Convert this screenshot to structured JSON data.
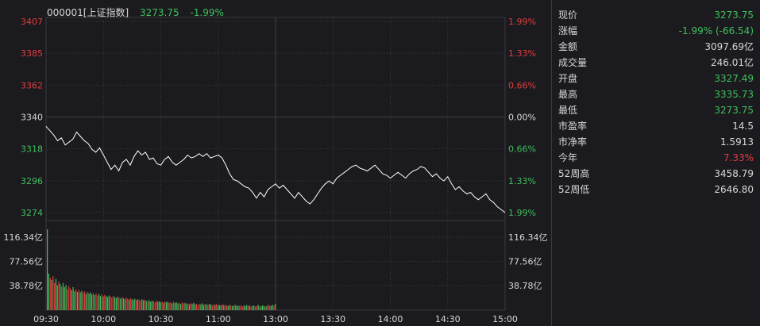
{
  "header": {
    "code": "000001[上证指数]",
    "price": "3273.75",
    "change": "-1.99%"
  },
  "colors": {
    "background": "#1b1b1f",
    "grid": "#3a3a3e",
    "up": "#e23b3b",
    "down": "#3fbf5b",
    "line": "#ffffff",
    "text": "#d7d7d7"
  },
  "chart_data": {
    "type": "line",
    "x_ticks": [
      "09:30",
      "10:00",
      "10:30",
      "11:00",
      "13:00",
      "13:30",
      "14:00",
      "14:30",
      "15:00"
    ],
    "price_axis": {
      "ticks": [
        "3407",
        "3385",
        "3362",
        "3340",
        "3318",
        "3296",
        "3274"
      ],
      "pct_ticks": [
        "1.99%",
        "1.33%",
        "0.66%",
        "0.00%",
        "0.66%",
        "1.33%",
        "1.99%"
      ],
      "ylim": [
        3274,
        3407
      ],
      "ref": 3340
    },
    "volume_axis": {
      "ticks": [
        "116.34亿",
        "77.56亿",
        "38.78亿"
      ],
      "unit": "亿",
      "ylim": [
        0,
        155.12
      ]
    },
    "price_series": [
      [
        0,
        3334
      ],
      [
        2,
        3331
      ],
      [
        4,
        3328
      ],
      [
        6,
        3324
      ],
      [
        8,
        3326
      ],
      [
        10,
        3321
      ],
      [
        12,
        3323
      ],
      [
        14,
        3325
      ],
      [
        16,
        3330
      ],
      [
        18,
        3327
      ],
      [
        20,
        3324
      ],
      [
        22,
        3322
      ],
      [
        24,
        3318
      ],
      [
        26,
        3316
      ],
      [
        28,
        3319
      ],
      [
        30,
        3314
      ],
      [
        32,
        3309
      ],
      [
        34,
        3304
      ],
      [
        36,
        3307
      ],
      [
        38,
        3303
      ],
      [
        40,
        3309
      ],
      [
        42,
        3311
      ],
      [
        44,
        3307
      ],
      [
        46,
        3313
      ],
      [
        48,
        3317
      ],
      [
        50,
        3314
      ],
      [
        52,
        3316
      ],
      [
        54,
        3311
      ],
      [
        56,
        3312
      ],
      [
        58,
        3308
      ],
      [
        60,
        3307
      ],
      [
        62,
        3311
      ],
      [
        64,
        3313
      ],
      [
        66,
        3309
      ],
      [
        68,
        3307
      ],
      [
        70,
        3309
      ],
      [
        72,
        3311
      ],
      [
        74,
        3314
      ],
      [
        76,
        3312
      ],
      [
        78,
        3313
      ],
      [
        80,
        3315
      ],
      [
        82,
        3313
      ],
      [
        84,
        3315
      ],
      [
        86,
        3312
      ],
      [
        88,
        3313
      ],
      [
        90,
        3314
      ],
      [
        92,
        3312
      ],
      [
        94,
        3307
      ],
      [
        96,
        3301
      ],
      [
        98,
        3297
      ],
      [
        100,
        3296
      ],
      [
        102,
        3294
      ],
      [
        104,
        3292
      ],
      [
        106,
        3291
      ],
      [
        108,
        3288
      ],
      [
        110,
        3284
      ],
      [
        112,
        3288
      ],
      [
        114,
        3285
      ],
      [
        116,
        3290
      ],
      [
        118,
        3292
      ],
      [
        120,
        3294
      ],
      [
        122,
        3291
      ],
      [
        124,
        3293
      ],
      [
        126,
        3290
      ],
      [
        128,
        3287
      ],
      [
        130,
        3284
      ],
      [
        132,
        3288
      ],
      [
        134,
        3285
      ],
      [
        136,
        3282
      ],
      [
        138,
        3280
      ],
      [
        140,
        3283
      ],
      [
        142,
        3287
      ],
      [
        144,
        3291
      ],
      [
        146,
        3294
      ],
      [
        148,
        3296
      ],
      [
        150,
        3294
      ],
      [
        152,
        3298
      ],
      [
        154,
        3300
      ],
      [
        156,
        3302
      ],
      [
        158,
        3304
      ],
      [
        160,
        3306
      ],
      [
        162,
        3307
      ],
      [
        164,
        3305
      ],
      [
        166,
        3304
      ],
      [
        168,
        3303
      ],
      [
        170,
        3305
      ],
      [
        172,
        3307
      ],
      [
        174,
        3304
      ],
      [
        176,
        3301
      ],
      [
        178,
        3300
      ],
      [
        180,
        3298
      ],
      [
        182,
        3300
      ],
      [
        184,
        3302
      ],
      [
        186,
        3300
      ],
      [
        188,
        3298
      ],
      [
        190,
        3301
      ],
      [
        192,
        3303
      ],
      [
        194,
        3304
      ],
      [
        196,
        3306
      ],
      [
        198,
        3305
      ],
      [
        200,
        3302
      ],
      [
        202,
        3299
      ],
      [
        204,
        3301
      ],
      [
        206,
        3298
      ],
      [
        208,
        3296
      ],
      [
        210,
        3299
      ],
      [
        212,
        3294
      ],
      [
        214,
        3290
      ],
      [
        216,
        3292
      ],
      [
        218,
        3289
      ],
      [
        220,
        3287
      ],
      [
        222,
        3288
      ],
      [
        224,
        3285
      ],
      [
        226,
        3283
      ],
      [
        228,
        3285
      ],
      [
        230,
        3287
      ],
      [
        232,
        3283
      ],
      [
        234,
        3281
      ],
      [
        236,
        3278
      ],
      [
        238,
        3276
      ],
      [
        240,
        3274
      ]
    ],
    "volume_series": [
      [
        0,
        155
      ],
      [
        1,
        70
      ],
      [
        2,
        62
      ],
      [
        3,
        58
      ],
      [
        4,
        65
      ],
      [
        5,
        52
      ],
      [
        6,
        60
      ],
      [
        7,
        48
      ],
      [
        8,
        55
      ],
      [
        9,
        50
      ],
      [
        10,
        45
      ],
      [
        11,
        52
      ],
      [
        12,
        44
      ],
      [
        13,
        48
      ],
      [
        14,
        40
      ],
      [
        15,
        46
      ],
      [
        16,
        42
      ],
      [
        17,
        38
      ],
      [
        18,
        44
      ],
      [
        19,
        36
      ],
      [
        20,
        40
      ],
      [
        21,
        35
      ],
      [
        22,
        39
      ],
      [
        23,
        34
      ],
      [
        24,
        37
      ],
      [
        25,
        33
      ],
      [
        26,
        36
      ],
      [
        27,
        31
      ],
      [
        28,
        35
      ],
      [
        29,
        32
      ],
      [
        30,
        34
      ],
      [
        31,
        30
      ],
      [
        32,
        33
      ],
      [
        33,
        29
      ],
      [
        34,
        32
      ],
      [
        35,
        28
      ],
      [
        36,
        31
      ],
      [
        37,
        27
      ],
      [
        38,
        30
      ],
      [
        39,
        26
      ],
      [
        40,
        29
      ],
      [
        41,
        27
      ],
      [
        42,
        25
      ],
      [
        43,
        28
      ],
      [
        44,
        26
      ],
      [
        45,
        24
      ],
      [
        46,
        27
      ],
      [
        47,
        25
      ],
      [
        48,
        23
      ],
      [
        49,
        26
      ],
      [
        50,
        24
      ],
      [
        51,
        22
      ],
      [
        52,
        25
      ],
      [
        53,
        23
      ],
      [
        54,
        21
      ],
      [
        55,
        24
      ],
      [
        56,
        22
      ],
      [
        57,
        20
      ],
      [
        58,
        23
      ],
      [
        59,
        21
      ],
      [
        60,
        20
      ],
      [
        61,
        22
      ],
      [
        62,
        19
      ],
      [
        63,
        21
      ],
      [
        64,
        20
      ],
      [
        65,
        18
      ],
      [
        66,
        21
      ],
      [
        67,
        19
      ],
      [
        68,
        20
      ],
      [
        69,
        18
      ],
      [
        70,
        17
      ],
      [
        71,
        19
      ],
      [
        72,
        16
      ],
      [
        73,
        18
      ],
      [
        74,
        17
      ],
      [
        75,
        15
      ],
      [
        76,
        18
      ],
      [
        77,
        16
      ],
      [
        78,
        17
      ],
      [
        79,
        15
      ],
      [
        80,
        16
      ],
      [
        81,
        14
      ],
      [
        82,
        17
      ],
      [
        83,
        15
      ],
      [
        84,
        16
      ],
      [
        85,
        14
      ],
      [
        86,
        15
      ],
      [
        87,
        13
      ],
      [
        88,
        16
      ],
      [
        89,
        14
      ],
      [
        90,
        15
      ],
      [
        91,
        13
      ],
      [
        92,
        14
      ],
      [
        93,
        12
      ],
      [
        94,
        15
      ],
      [
        95,
        13
      ],
      [
        96,
        14
      ],
      [
        97,
        12
      ],
      [
        98,
        13
      ],
      [
        99,
        11
      ],
      [
        100,
        13
      ],
      [
        101,
        12
      ],
      [
        102,
        14
      ],
      [
        103,
        11
      ],
      [
        104,
        12
      ],
      [
        105,
        10
      ],
      [
        106,
        12
      ],
      [
        107,
        11
      ],
      [
        108,
        13
      ],
      [
        109,
        10
      ],
      [
        110,
        12
      ],
      [
        111,
        11
      ],
      [
        112,
        10
      ],
      [
        113,
        12
      ],
      [
        114,
        11
      ],
      [
        115,
        9
      ],
      [
        116,
        11
      ],
      [
        117,
        10
      ],
      [
        118,
        12
      ],
      [
        119,
        9
      ],
      [
        120,
        10
      ],
      [
        121,
        9
      ],
      [
        122,
        11
      ],
      [
        123,
        10
      ],
      [
        124,
        9
      ],
      [
        125,
        10
      ],
      [
        126,
        8
      ],
      [
        127,
        10
      ],
      [
        128,
        9
      ],
      [
        129,
        8
      ],
      [
        130,
        9
      ],
      [
        131,
        10
      ],
      [
        132,
        8
      ],
      [
        133,
        9
      ],
      [
        134,
        8
      ],
      [
        135,
        9
      ],
      [
        136,
        7
      ],
      [
        137,
        9
      ],
      [
        138,
        8
      ],
      [
        139,
        10
      ],
      [
        140,
        8
      ],
      [
        141,
        9
      ],
      [
        142,
        7
      ],
      [
        143,
        8
      ],
      [
        144,
        9
      ],
      [
        145,
        7
      ],
      [
        146,
        8
      ],
      [
        147,
        10
      ],
      [
        148,
        8
      ],
      [
        149,
        7
      ],
      [
        150,
        9
      ],
      [
        151,
        8
      ],
      [
        152,
        7
      ],
      [
        153,
        8
      ],
      [
        154,
        10
      ],
      [
        155,
        9
      ],
      [
        156,
        8
      ],
      [
        157,
        10
      ],
      [
        158,
        9
      ],
      [
        159,
        12
      ]
    ]
  },
  "stats": [
    {
      "label": "现价",
      "value": "3273.75",
      "color": "green"
    },
    {
      "label": "涨幅",
      "value": "-1.99% (-66.54)",
      "color": "green"
    },
    {
      "label": "金额",
      "value": "3097.69亿",
      "color": "white"
    },
    {
      "label": "成交量",
      "value": "246.01亿",
      "color": "white"
    },
    {
      "label": "开盘",
      "value": "3327.49",
      "color": "green"
    },
    {
      "label": "最高",
      "value": "3335.73",
      "color": "green"
    },
    {
      "label": "最低",
      "value": "3273.75",
      "color": "green"
    },
    {
      "label": "市盈率",
      "value": "14.5",
      "color": "white"
    },
    {
      "label": "市净率",
      "value": "1.5913",
      "color": "white"
    },
    {
      "label": "今年",
      "value": "7.33%",
      "color": "red"
    },
    {
      "label": "52周高",
      "value": "3458.79",
      "color": "white"
    },
    {
      "label": "52周低",
      "value": "2646.80",
      "color": "white"
    }
  ]
}
